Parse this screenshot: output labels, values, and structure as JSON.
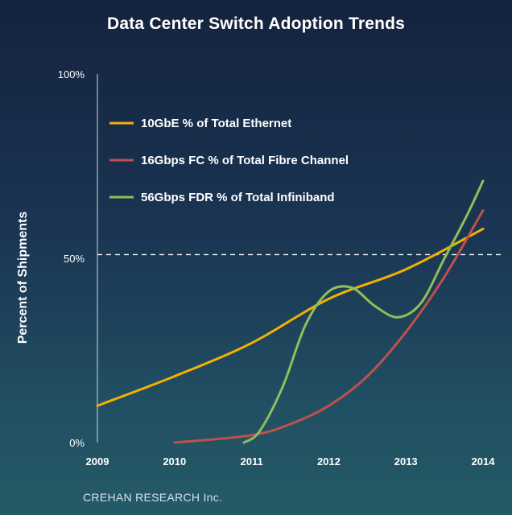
{
  "chart_data": {
    "type": "line",
    "title": "Data Center Switch Adoption Trends",
    "ylabel": "Percent of Shipments",
    "xlabel": "",
    "ylim": [
      0,
      100
    ],
    "y_ticks": [
      {
        "value": 0,
        "label": "0%"
      },
      {
        "value": 50,
        "label": "50%"
      },
      {
        "value": 100,
        "label": "100%"
      }
    ],
    "x_ticks": [
      "2009",
      "2010",
      "2011",
      "2012",
      "2013",
      "2014"
    ],
    "reference_line": {
      "value": 51,
      "style": "dashed",
      "color": "#ffffff"
    },
    "legend_position": "top-left",
    "grid": false,
    "series": [
      {
        "name": "10GbE % of Total Ethernet",
        "color": "#f2b200",
        "x": [
          2009,
          2010,
          2011,
          2012,
          2013,
          2014
        ],
        "y": [
          10,
          18,
          27,
          39,
          47,
          58
        ]
      },
      {
        "name": "16Gbps FC % of Total Fibre Channel",
        "color": "#c0504d",
        "x": [
          2010,
          2011,
          2011.5,
          2012,
          2012.5,
          2013,
          2013.5,
          2014
        ],
        "y": [
          0,
          2,
          5,
          10,
          18,
          30,
          45,
          63
        ]
      },
      {
        "name": "56Gbps FDR % of Total Infiniband",
        "color": "#8fbf5a",
        "x": [
          2010.9,
          2011.1,
          2011.4,
          2011.7,
          2012.0,
          2012.3,
          2012.6,
          2012.9,
          2013.2,
          2013.5,
          2013.8,
          2014
        ],
        "y": [
          0,
          3,
          15,
          32,
          41,
          42,
          37,
          34,
          38,
          50,
          62,
          71
        ]
      }
    ]
  },
  "footer": {
    "source": "CREHAN RESEARCH Inc."
  }
}
